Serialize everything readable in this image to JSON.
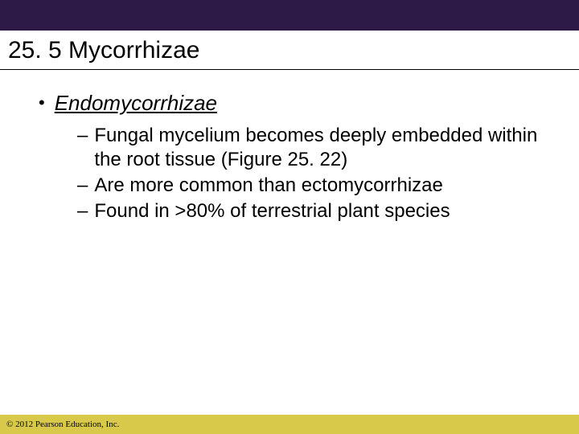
{
  "colors": {
    "top_bar": "#2e1a47",
    "footer_bg": "#d8c94a",
    "text": "#000000",
    "background": "#ffffff"
  },
  "slide": {
    "title": "25. 5 Mycorrhizae",
    "heading": "Endomycorrhizae",
    "sub_items": [
      "Fungal mycelium becomes deeply embedded within the root tissue (Figure 25. 22)",
      "Are more common than ectomycorrhizae",
      "Found in >80% of terrestrial plant species"
    ]
  },
  "footer": {
    "copyright": "© 2012 Pearson Education, Inc."
  },
  "typography": {
    "title_fontsize": 30,
    "heading_fontsize": 26,
    "body_fontsize": 24,
    "copyright_fontsize": 11
  }
}
